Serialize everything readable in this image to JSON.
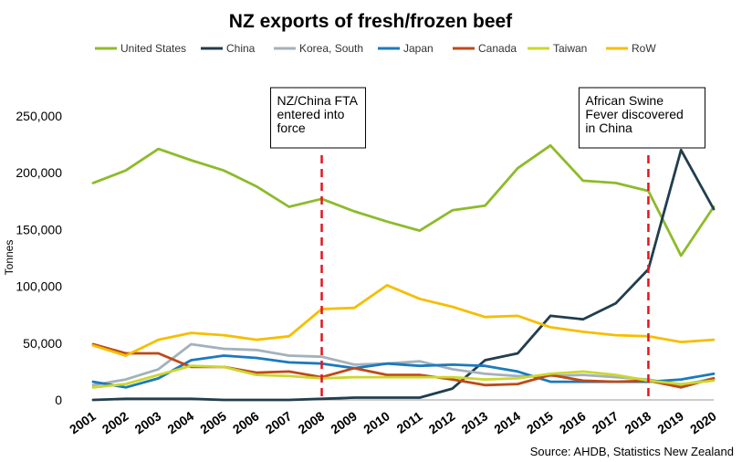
{
  "chart_data": {
    "type": "line",
    "title": "NZ exports of fresh/frozen  beef",
    "xlabel": "",
    "ylabel": "Tonnes",
    "ylim": [
      0,
      250000
    ],
    "yticks": [
      0,
      50000,
      100000,
      150000,
      200000,
      250000
    ],
    "ytick_labels": [
      "0",
      "50,000",
      "100,000",
      "150,000",
      "200,000",
      "250,000"
    ],
    "x": [
      "2001",
      "2002",
      "2003",
      "2004",
      "2005",
      "2006",
      "2007",
      "2008",
      "2009",
      "2010",
      "2011",
      "2012",
      "2013",
      "2014",
      "2015",
      "2016",
      "2017",
      "2018",
      "2019",
      "2020"
    ],
    "legend_position": "top",
    "series": [
      {
        "name": "United States",
        "color": "#8DBB2A",
        "values": [
          191000,
          202000,
          221000,
          211000,
          202000,
          188000,
          170000,
          177000,
          166000,
          157000,
          149000,
          167000,
          171000,
          204000,
          224000,
          193000,
          191000,
          184000,
          127000,
          170000
        ]
      },
      {
        "name": "China",
        "color": "#203E4E",
        "values": [
          0,
          1000,
          1000,
          1000,
          0,
          0,
          0,
          1000,
          2000,
          2000,
          2000,
          10000,
          35000,
          41000,
          74000,
          71000,
          85000,
          115000,
          220000,
          168000
        ]
      },
      {
        "name": "Korea, South",
        "color": "#A3B1BB",
        "values": [
          13000,
          18000,
          27000,
          49000,
          45000,
          44000,
          39000,
          38000,
          31000,
          32000,
          34000,
          27000,
          23000,
          21000,
          21000,
          22000,
          20000,
          18000,
          13000,
          19000
        ]
      },
      {
        "name": "Japan",
        "color": "#1B7ABD",
        "values": [
          16000,
          11000,
          19000,
          35000,
          39000,
          37000,
          33000,
          32000,
          28000,
          32000,
          30000,
          31000,
          30000,
          25000,
          16000,
          16000,
          16000,
          16000,
          18000,
          23000
        ]
      },
      {
        "name": "Canada",
        "color": "#BE4A17",
        "values": [
          49000,
          41000,
          41000,
          29000,
          29000,
          24000,
          25000,
          20000,
          28000,
          22000,
          22000,
          18000,
          13000,
          14000,
          22000,
          17000,
          16000,
          17000,
          11000,
          19000
        ]
      },
      {
        "name": "Taiwan",
        "color": "#CBD72E",
        "values": [
          11000,
          14000,
          22000,
          30000,
          29000,
          22000,
          21000,
          19000,
          20000,
          20000,
          20000,
          20000,
          18000,
          19000,
          23000,
          25000,
          22000,
          17000,
          14000,
          17000
        ]
      },
      {
        "name": "RoW",
        "color": "#F6BE00",
        "values": [
          48000,
          39000,
          53000,
          59000,
          57000,
          53000,
          56000,
          80000,
          81000,
          101000,
          89000,
          82000,
          73000,
          74000,
          64000,
          60000,
          57000,
          56000,
          51000,
          53000
        ]
      }
    ],
    "annotations": [
      {
        "x": "2008",
        "lines": [
          "NZ/China FTA",
          "entered into",
          "force"
        ]
      },
      {
        "x": "2018",
        "lines": [
          "African Swine",
          "Fever discovered",
          "in China"
        ]
      }
    ],
    "source": "Source: AHDB, Statistics New Zealand"
  }
}
